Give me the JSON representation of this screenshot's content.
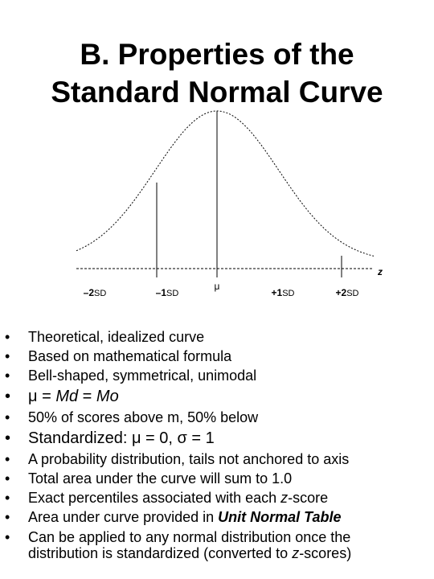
{
  "title": [
    "B.   Properties of the",
    "Standard Normal Curve"
  ],
  "diagram": {
    "axis_label": "z",
    "labels": [
      {
        "sign": "–2",
        "unit": "SD"
      },
      {
        "sign": "–1",
        "unit": "SD"
      },
      {
        "sign": "μ"
      },
      {
        "sign": "+1",
        "unit": "SD"
      },
      {
        "sign": "+2",
        "unit": "SD"
      }
    ]
  },
  "bullets": [
    [
      "Theoretical, idealized curve"
    ],
    [
      "Based on mathematical formula"
    ],
    [
      "Bell-shaped, symmetrical, unimodal"
    ],
    [
      "μ = ",
      "Md",
      " = ",
      "Mo"
    ],
    [
      "50% of scores above m, 50% below"
    ],
    [
      "Standardized: μ = 0, σ = 1"
    ],
    [
      "A probability distribution, tails not anchored to axis"
    ],
    [
      "Total area under the curve will sum to 1.0"
    ],
    [
      "Exact percentiles associated with each ",
      "z",
      "-score"
    ],
    [
      "Area under curve provided in ",
      "Unit Normal Table"
    ],
    [
      "Can be applied to any normal distribution once the distribution is standardized (converted to ",
      "z",
      "-scores)"
    ]
  ]
}
